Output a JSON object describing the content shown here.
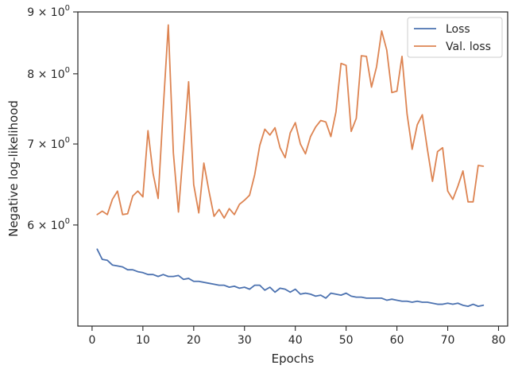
{
  "chart_data": {
    "type": "line",
    "xlabel": "Epochs",
    "ylabel": "Negative log-likelihood",
    "xlim": [
      -2.8,
      81.8
    ],
    "ylim": [
      4.95,
      9.0
    ],
    "yscale": "log",
    "grid": false,
    "legend_position": "top-right",
    "x_ticks": [
      0,
      10,
      20,
      30,
      40,
      50,
      60,
      70,
      80
    ],
    "x_tick_labels": [
      "0",
      "10",
      "20",
      "30",
      "40",
      "50",
      "60",
      "70",
      "80"
    ],
    "y_ticks": [
      6,
      7,
      8,
      9
    ],
    "y_tick_labels": [
      {
        "base": "6 × 10",
        "exp": "0"
      },
      {
        "base": "7 × 10",
        "exp": "0"
      },
      {
        "base": "8 × 10",
        "exp": "0"
      },
      {
        "base": "9 × 10",
        "exp": "0"
      }
    ],
    "series": [
      {
        "name": "Loss",
        "color": "#4c72b0",
        "x": [
          1,
          2,
          3,
          4,
          5,
          6,
          7,
          8,
          9,
          10,
          11,
          12,
          13,
          14,
          15,
          16,
          17,
          18,
          19,
          20,
          21,
          22,
          23,
          24,
          25,
          26,
          27,
          28,
          29,
          30,
          31,
          32,
          33,
          34,
          35,
          36,
          37,
          38,
          39,
          40,
          41,
          42,
          43,
          44,
          45,
          46,
          47,
          48,
          49,
          50,
          51,
          52,
          53,
          54,
          55,
          56,
          57,
          58,
          59,
          60,
          61,
          62,
          63,
          64,
          65,
          66,
          67,
          68,
          69,
          70,
          71,
          72,
          73,
          74,
          75,
          76,
          77
        ],
        "y": [
          5.73,
          5.62,
          5.61,
          5.56,
          5.55,
          5.54,
          5.51,
          5.51,
          5.49,
          5.48,
          5.46,
          5.46,
          5.44,
          5.46,
          5.44,
          5.44,
          5.45,
          5.41,
          5.42,
          5.39,
          5.39,
          5.38,
          5.37,
          5.36,
          5.35,
          5.35,
          5.33,
          5.34,
          5.32,
          5.33,
          5.31,
          5.35,
          5.35,
          5.3,
          5.33,
          5.28,
          5.32,
          5.31,
          5.28,
          5.31,
          5.26,
          5.27,
          5.26,
          5.24,
          5.25,
          5.22,
          5.27,
          5.26,
          5.25,
          5.27,
          5.24,
          5.23,
          5.23,
          5.22,
          5.22,
          5.22,
          5.22,
          5.2,
          5.21,
          5.2,
          5.19,
          5.19,
          5.18,
          5.19,
          5.18,
          5.18,
          5.17,
          5.16,
          5.16,
          5.17,
          5.16,
          5.17,
          5.15,
          5.14,
          5.16,
          5.14,
          5.15
        ]
      },
      {
        "name": "Val. loss",
        "color": "#dd8452",
        "x": [
          1,
          2,
          3,
          4,
          5,
          6,
          7,
          8,
          9,
          10,
          11,
          12,
          13,
          14,
          15,
          16,
          17,
          18,
          19,
          20,
          21,
          22,
          23,
          24,
          25,
          26,
          27,
          28,
          29,
          30,
          31,
          32,
          33,
          34,
          35,
          36,
          37,
          38,
          39,
          40,
          41,
          42,
          43,
          44,
          45,
          46,
          47,
          48,
          49,
          50,
          51,
          52,
          53,
          54,
          55,
          56,
          57,
          58,
          59,
          60,
          61,
          62,
          63,
          64,
          65,
          66,
          67,
          68,
          69,
          70,
          71,
          72,
          73,
          74,
          75,
          76,
          77
        ],
        "y": [
          6.12,
          6.16,
          6.12,
          6.3,
          6.4,
          6.12,
          6.13,
          6.34,
          6.4,
          6.33,
          7.18,
          6.62,
          6.31,
          7.48,
          8.78,
          6.88,
          6.15,
          6.95,
          7.88,
          6.48,
          6.14,
          6.75,
          6.4,
          6.1,
          6.18,
          6.08,
          6.19,
          6.12,
          6.24,
          6.29,
          6.35,
          6.6,
          6.98,
          7.2,
          7.12,
          7.22,
          6.95,
          6.82,
          7.15,
          7.29,
          7.0,
          6.87,
          7.1,
          7.23,
          7.32,
          7.3,
          7.1,
          7.44,
          8.16,
          8.13,
          7.17,
          7.35,
          8.28,
          8.27,
          7.8,
          8.11,
          8.68,
          8.37,
          7.72,
          7.74,
          8.27,
          7.41,
          6.93,
          7.26,
          7.4,
          6.93,
          6.52,
          6.9,
          6.95,
          6.4,
          6.3,
          6.46,
          6.65,
          6.27,
          6.27,
          6.72,
          6.71
        ]
      }
    ]
  }
}
